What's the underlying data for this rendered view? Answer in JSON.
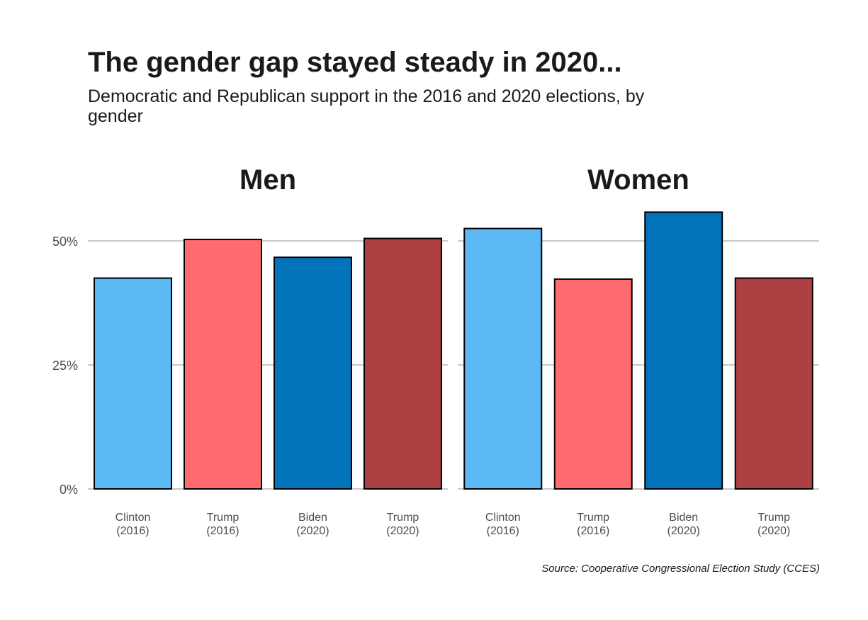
{
  "title": "The gender gap stayed steady in 2020...",
  "subtitle": "Democratic and Republican support in the 2016 and 2020 elections, by gender",
  "caption": "Source: Cooperative Congressional Election Study (CCES)",
  "chart_data": {
    "type": "bar",
    "facets": [
      "Men",
      "Women"
    ],
    "categories": [
      "Clinton\n(2016)",
      "Trump\n(2016)",
      "Biden\n(2020)",
      "Trump\n(2020)"
    ],
    "colors": [
      "#5DB9F4",
      "#FF6B6E",
      "#0073BA",
      "#AD4042"
    ],
    "series": [
      {
        "facet": "Men",
        "values": [
          42.5,
          50.3,
          46.7,
          50.5
        ]
      },
      {
        "facet": "Women",
        "values": [
          52.5,
          42.3,
          55.8,
          42.5
        ]
      }
    ],
    "ylim": [
      0,
      57
    ],
    "yticks": [
      0,
      25,
      50
    ],
    "ytick_labels": [
      "0%",
      "25%",
      "50%"
    ],
    "grid": "horizontal major",
    "legend": "none"
  }
}
